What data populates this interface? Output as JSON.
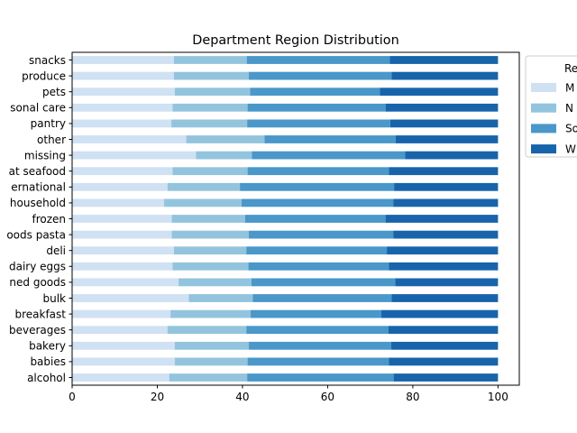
{
  "chart_data": {
    "type": "bar",
    "orientation": "horizontal",
    "stacked": true,
    "title": "Department Region Distribution",
    "xlabel": "",
    "ylabel": "",
    "xlim": [
      0,
      105
    ],
    "xticks": [
      0,
      20,
      40,
      60,
      80,
      100
    ],
    "grid": false,
    "legend_position": "upper-right-outside",
    "legend_title": "Re",
    "categories": [
      "snacks",
      "produce",
      "pets",
      "sonal care",
      "pantry",
      "other",
      "missing",
      "at seafood",
      "ernational",
      "household",
      "frozen",
      "oods pasta",
      "deli",
      "dairy eggs",
      "ned goods",
      "bulk",
      "breakfast",
      "beverages",
      "bakery",
      "babies",
      "alcohol"
    ],
    "series": [
      {
        "name": "M",
        "color": "#cfe1f2",
        "values": [
          23.9,
          23.9,
          24.1,
          23.6,
          23.3,
          26.8,
          29.1,
          23.6,
          22.4,
          21.6,
          23.4,
          23.4,
          23.9,
          23.6,
          25.0,
          27.4,
          23.1,
          22.4,
          24.1,
          24.1,
          22.8
        ]
      },
      {
        "name": "N",
        "color": "#93c4de",
        "values": [
          17.1,
          17.6,
          17.7,
          17.6,
          17.8,
          18.4,
          13.1,
          17.6,
          17.0,
          18.2,
          17.2,
          18.1,
          17.0,
          17.8,
          17.1,
          15.0,
          18.8,
          18.5,
          17.4,
          17.1,
          18.3
        ]
      },
      {
        "name": "So",
        "color": "#4a97c9",
        "values": [
          33.6,
          33.5,
          30.5,
          32.4,
          33.6,
          30.8,
          36.0,
          33.2,
          36.2,
          35.6,
          33.0,
          33.9,
          33.0,
          33.0,
          33.8,
          32.6,
          30.7,
          33.4,
          33.4,
          33.2,
          34.4
        ]
      },
      {
        "name": "W",
        "color": "#1764ab",
        "values": [
          25.4,
          25.0,
          27.7,
          26.4,
          25.3,
          24.0,
          21.8,
          25.6,
          24.4,
          24.6,
          26.4,
          24.6,
          26.1,
          25.6,
          24.1,
          25.0,
          27.4,
          25.7,
          25.1,
          25.6,
          24.5
        ]
      }
    ]
  }
}
